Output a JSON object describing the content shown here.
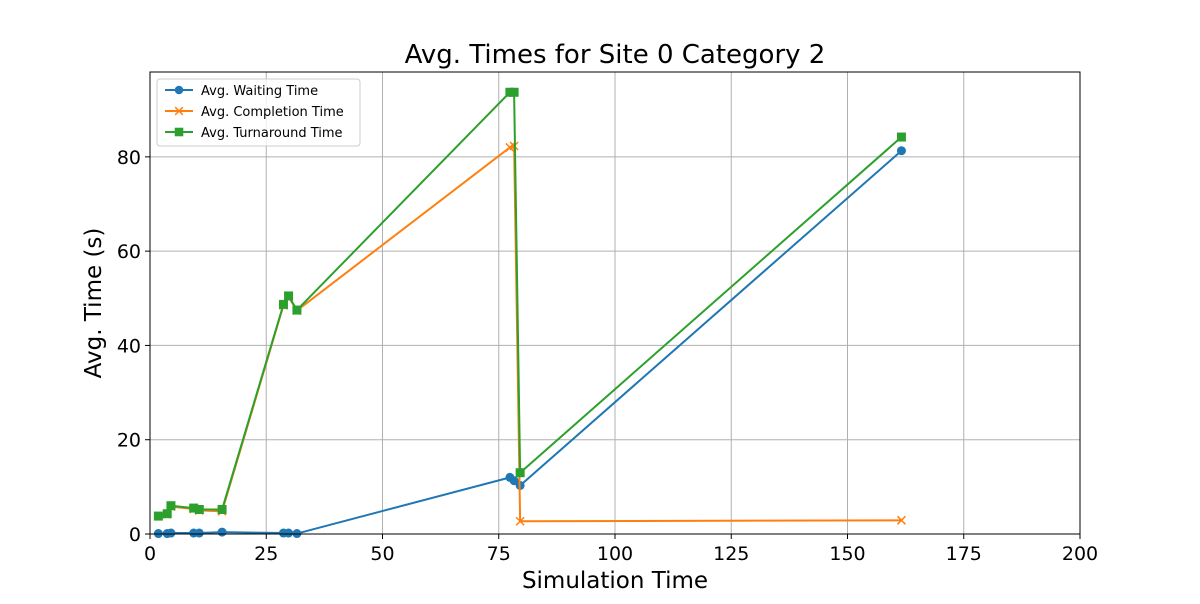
{
  "chart_data": {
    "type": "line",
    "title": "Avg. Times for Site 0 Category 2",
    "xlabel": "Simulation Time",
    "ylabel": "Avg. Time (s)",
    "xlim": [
      0,
      200
    ],
    "ylim": [
      0,
      98
    ],
    "xticks": [
      0,
      25,
      50,
      75,
      100,
      125,
      150,
      175,
      200
    ],
    "yticks": [
      0,
      20,
      40,
      60,
      80
    ],
    "grid": true,
    "legend_position": "upper-left",
    "series": [
      {
        "name": "Avg. Waiting Time",
        "color": "#1f77b4",
        "marker": "circle",
        "x": [
          1.8,
          3.7,
          4.5,
          9.4,
          10.6,
          15.5,
          28.7,
          29.8,
          31.6,
          77.4,
          78.3,
          79.6,
          161.6
        ],
        "y": [
          0.1,
          0.1,
          0.2,
          0.2,
          0.2,
          0.4,
          0.2,
          0.2,
          0.1,
          12.0,
          11.3,
          10.3,
          81.3
        ]
      },
      {
        "name": "Avg. Completion Time",
        "color": "#ff7f0e",
        "marker": "x",
        "x": [
          1.8,
          3.7,
          4.5,
          9.4,
          10.6,
          15.5,
          28.7,
          29.8,
          31.6,
          77.4,
          78.3,
          79.6,
          161.6
        ],
        "y": [
          3.8,
          4.2,
          5.8,
          5.3,
          5.0,
          4.8,
          48.5,
          50.3,
          47.4,
          82.0,
          82.3,
          2.7,
          2.9
        ]
      },
      {
        "name": "Avg. Turnaround Time",
        "color": "#2ca02c",
        "marker": "square",
        "x": [
          1.8,
          3.7,
          4.5,
          9.4,
          10.6,
          15.5,
          28.7,
          29.8,
          31.6,
          77.4,
          78.3,
          79.6,
          161.6
        ],
        "y": [
          3.8,
          4.3,
          6.0,
          5.5,
          5.2,
          5.2,
          48.7,
          50.5,
          47.5,
          93.7,
          93.7,
          13.0,
          84.2
        ]
      }
    ]
  }
}
